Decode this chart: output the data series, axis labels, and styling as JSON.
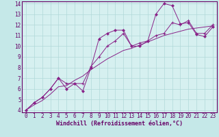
{
  "xlabel": "Windchill (Refroidissement éolien,°C)",
  "bg_color": "#c5e8e8",
  "plot_bg": "#d6f0f0",
  "line_color": "#882288",
  "grid_color": "#b0d8d8",
  "spine_color": "#660066",
  "xlim": [
    -0.5,
    23.5
  ],
  "ylim": [
    3.8,
    14.2
  ],
  "xticks": [
    0,
    1,
    2,
    3,
    4,
    5,
    6,
    7,
    8,
    9,
    10,
    11,
    12,
    13,
    14,
    15,
    16,
    17,
    18,
    19,
    20,
    21,
    22,
    23
  ],
  "yticks": [
    4,
    5,
    6,
    7,
    8,
    9,
    10,
    11,
    12,
    13,
    14
  ],
  "line1_x": [
    0,
    1,
    2,
    3,
    4,
    5,
    6,
    7,
    8,
    9,
    10,
    11,
    12,
    13,
    14,
    15,
    16,
    17,
    18,
    19,
    20,
    21,
    22,
    23
  ],
  "line1_y": [
    4.0,
    4.7,
    5.2,
    6.0,
    7.0,
    6.0,
    6.5,
    5.8,
    8.0,
    10.7,
    11.2,
    11.5,
    11.5,
    10.0,
    10.0,
    10.5,
    13.0,
    14.0,
    13.8,
    12.1,
    12.2,
    11.1,
    10.9,
    11.8
  ],
  "line2_x": [
    0,
    1,
    2,
    3,
    4,
    5,
    6,
    7,
    8,
    9,
    10,
    11,
    12,
    13,
    14,
    15,
    16,
    17,
    18,
    19,
    20,
    21,
    22,
    23
  ],
  "line2_y": [
    4.0,
    4.7,
    5.2,
    6.0,
    7.0,
    6.5,
    6.5,
    6.5,
    8.1,
    9.0,
    10.0,
    10.5,
    11.2,
    10.0,
    10.3,
    10.5,
    11.0,
    11.2,
    12.2,
    12.0,
    12.4,
    11.2,
    11.2,
    12.0
  ],
  "line3_x": [
    0,
    1,
    2,
    3,
    4,
    5,
    6,
    7,
    8,
    9,
    10,
    11,
    12,
    13,
    14,
    15,
    16,
    17,
    18,
    19,
    20,
    21,
    22,
    23
  ],
  "line3_y": [
    4.0,
    4.5,
    4.9,
    5.5,
    6.2,
    6.3,
    6.8,
    7.2,
    7.8,
    8.3,
    8.8,
    9.2,
    9.6,
    9.8,
    10.1,
    10.4,
    10.7,
    11.0,
    11.2,
    11.4,
    11.6,
    11.7,
    11.8,
    11.9
  ],
  "tick_color": "#660066",
  "tick_fontsize": 5.5,
  "xlabel_fontsize": 6.0
}
